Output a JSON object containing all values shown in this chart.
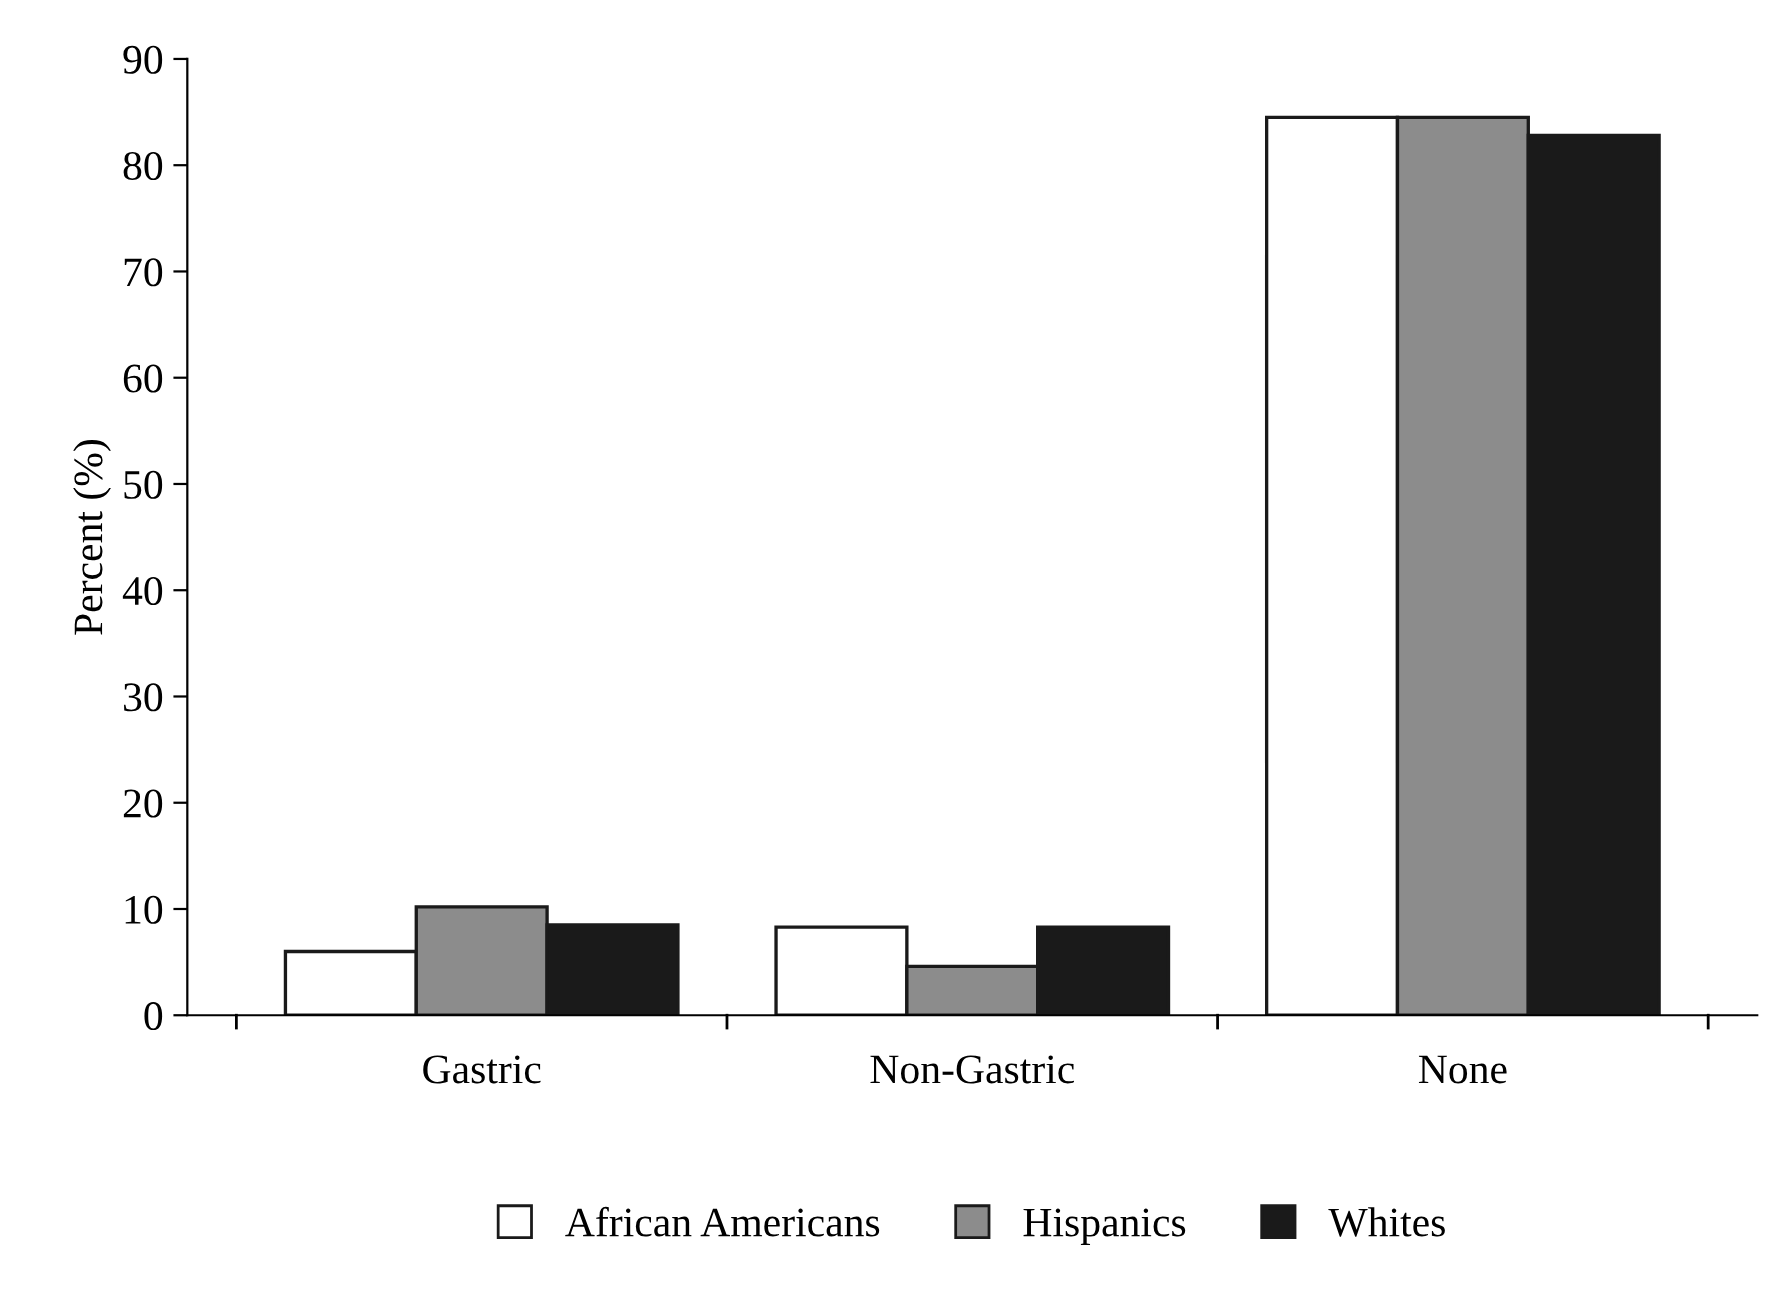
{
  "chart_data": {
    "type": "bar",
    "ylabel": "Percent (%)",
    "categories": [
      "Gastric",
      "Non-Gastric",
      "None"
    ],
    "series": [
      {
        "name": "African Americans",
        "color": "#ffffff",
        "values": [
          6.0,
          8.3,
          84.5
        ]
      },
      {
        "name": "Hispanics",
        "color": "#8c8c8c",
        "values": [
          10.2,
          4.6,
          84.5
        ]
      },
      {
        "name": "Whites",
        "color": "#1a1a1a",
        "values": [
          8.5,
          8.3,
          82.8
        ]
      }
    ],
    "ylim": [
      0,
      90
    ],
    "yticks": [
      0,
      10,
      20,
      30,
      40,
      50,
      60,
      70,
      80,
      90
    ],
    "grid": false,
    "legend": "bottom"
  }
}
